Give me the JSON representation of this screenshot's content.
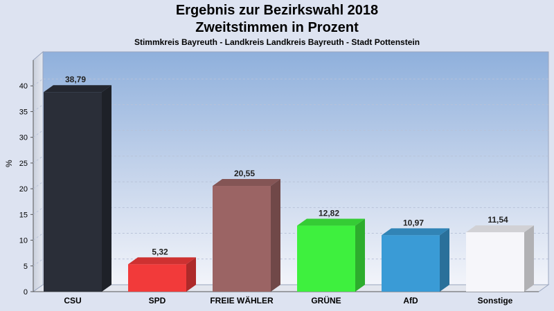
{
  "chart_data": {
    "type": "bar",
    "title": "Ergebnis zur Bezirkswahl 2018",
    "subtitle": "Zweitstimmen in Prozent",
    "caption": "Stimmkreis Bayreuth - Landkreis Landkreis Bayreuth - Stadt Pottenstein",
    "ylabel": "%",
    "xlabel": "",
    "ylim": [
      0,
      45
    ],
    "yticks": [
      0,
      5,
      10,
      15,
      20,
      25,
      30,
      35,
      40
    ],
    "grid": true,
    "categories": [
      "CSU",
      "SPD",
      "FREIE WÄHLER",
      "GRÜNE",
      "AfD",
      "Sonstige"
    ],
    "values": [
      38.79,
      5.32,
      20.55,
      12.82,
      10.97,
      11.54
    ],
    "value_labels": [
      "38,79",
      "5,32",
      "20,55",
      "12,82",
      "10,97",
      "11,54"
    ],
    "colors": [
      "#2a2e38",
      "#f23a3a",
      "#9b6464",
      "#3ef03e",
      "#3a9bd6",
      "#f6f6fa"
    ]
  }
}
